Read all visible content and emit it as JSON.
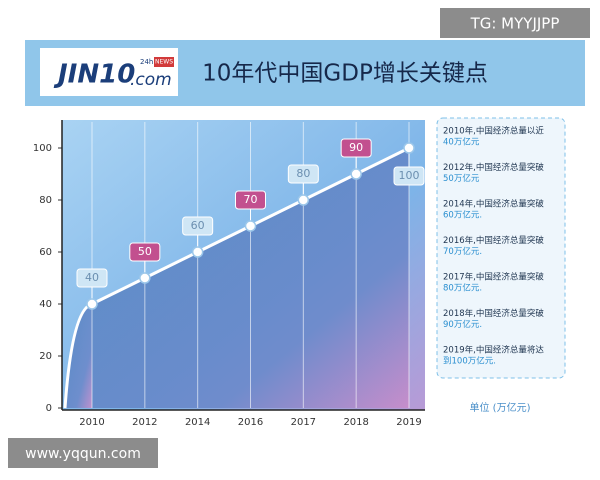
{
  "watermark_top": "TG: MYYJJPP",
  "watermark_bottom": "www.yqqun.com",
  "logo": {
    "main": "JIN10",
    "suffix": ".com",
    "badge_24h": "24h",
    "badge_news": "NEWS"
  },
  "chart_data": {
    "type": "line",
    "title": "10年代中国GDP增长关键点",
    "categories": [
      "2010",
      "2012",
      "2014",
      "2016",
      "2017",
      "2018",
      "2019"
    ],
    "values": [
      40,
      50,
      60,
      70,
      80,
      90,
      100
    ],
    "color": "#ffffff",
    "label_colors": [
      "#cfe6f5",
      "#c2508f",
      "#cfe6f5",
      "#c2508f",
      "#cfe6f5",
      "#c2508f",
      "#cfe6f5"
    ],
    "ylim": [
      0,
      110
    ],
    "yticks": [
      0,
      20,
      40,
      60,
      80,
      100
    ],
    "grid": true,
    "notes": [
      [
        "2010年,中国经济总量以近",
        "40万亿元"
      ],
      [
        "2012年,中国经济总量突破",
        "50万亿元"
      ],
      [
        "2014年,中国经济总量突破",
        "60万亿元."
      ],
      [
        "2016年,中国经济总量突破",
        "70万亿元."
      ],
      [
        "2017年,中国经济总量突破",
        "80万亿元."
      ],
      [
        "2018年,中国经济总量突破",
        "90万亿元."
      ],
      [
        "2019年,中国经济总量将达",
        "到100万亿元."
      ]
    ],
    "unit": "单位 (万亿元)"
  }
}
